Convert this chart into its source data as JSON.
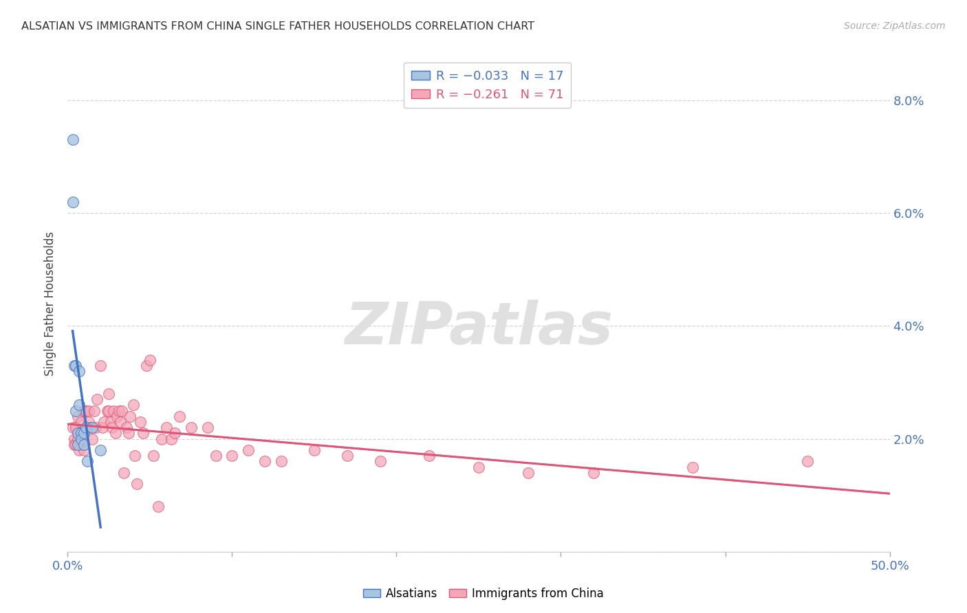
{
  "title": "ALSATIAN VS IMMIGRANTS FROM CHINA SINGLE FATHER HOUSEHOLDS CORRELATION CHART",
  "source": "Source: ZipAtlas.com",
  "ylabel": "Single Father Households",
  "xlim": [
    0.0,
    0.5
  ],
  "ylim": [
    0.0,
    0.088
  ],
  "yticks": [
    0.0,
    0.02,
    0.04,
    0.06,
    0.08
  ],
  "ytick_labels": [
    "",
    "2.0%",
    "4.0%",
    "6.0%",
    "8.0%"
  ],
  "xticks": [
    0.0,
    0.1,
    0.2,
    0.3,
    0.4,
    0.5
  ],
  "xtick_labels": [
    "0.0%",
    "",
    "",
    "",
    "",
    "50.0%"
  ],
  "legend_r1": "R = −0.033   N = 17",
  "legend_r2": "R = −0.261   N = 71",
  "alsatian_color": "#a8c4e0",
  "china_color": "#f4a7b9",
  "trendline_alsatian_color": "#4472c4",
  "trendline_china_color": "#e05575",
  "alsatian_x": [
    0.003,
    0.003,
    0.004,
    0.005,
    0.005,
    0.006,
    0.006,
    0.007,
    0.007,
    0.008,
    0.008,
    0.01,
    0.01,
    0.011,
    0.012,
    0.015,
    0.02
  ],
  "alsatian_y": [
    0.073,
    0.062,
    0.033,
    0.033,
    0.025,
    0.021,
    0.019,
    0.032,
    0.026,
    0.021,
    0.02,
    0.021,
    0.019,
    0.022,
    0.016,
    0.022,
    0.018
  ],
  "china_x": [
    0.003,
    0.004,
    0.004,
    0.005,
    0.005,
    0.006,
    0.006,
    0.007,
    0.007,
    0.008,
    0.009,
    0.009,
    0.01,
    0.01,
    0.011,
    0.012,
    0.013,
    0.013,
    0.014,
    0.015,
    0.016,
    0.017,
    0.018,
    0.02,
    0.021,
    0.022,
    0.024,
    0.025,
    0.025,
    0.026,
    0.027,
    0.028,
    0.029,
    0.03,
    0.031,
    0.032,
    0.033,
    0.034,
    0.036,
    0.037,
    0.038,
    0.04,
    0.041,
    0.042,
    0.044,
    0.046,
    0.048,
    0.05,
    0.052,
    0.055,
    0.057,
    0.06,
    0.063,
    0.065,
    0.068,
    0.075,
    0.085,
    0.09,
    0.1,
    0.11,
    0.12,
    0.13,
    0.15,
    0.17,
    0.19,
    0.22,
    0.25,
    0.28,
    0.32,
    0.38,
    0.45
  ],
  "china_y": [
    0.022,
    0.02,
    0.019,
    0.022,
    0.019,
    0.024,
    0.02,
    0.019,
    0.018,
    0.023,
    0.021,
    0.019,
    0.025,
    0.018,
    0.025,
    0.022,
    0.025,
    0.023,
    0.022,
    0.02,
    0.025,
    0.022,
    0.027,
    0.033,
    0.022,
    0.023,
    0.025,
    0.028,
    0.025,
    0.023,
    0.022,
    0.025,
    0.021,
    0.024,
    0.025,
    0.023,
    0.025,
    0.014,
    0.022,
    0.021,
    0.024,
    0.026,
    0.017,
    0.012,
    0.023,
    0.021,
    0.033,
    0.034,
    0.017,
    0.008,
    0.02,
    0.022,
    0.02,
    0.021,
    0.024,
    0.022,
    0.022,
    0.017,
    0.017,
    0.018,
    0.016,
    0.016,
    0.018,
    0.017,
    0.016,
    0.017,
    0.015,
    0.014,
    0.014,
    0.015,
    0.016
  ],
  "background_color": "#ffffff",
  "grid_color": "#d0d0d0",
  "watermark_text": "ZIPatlas",
  "watermark_color": "#e0e0e0"
}
